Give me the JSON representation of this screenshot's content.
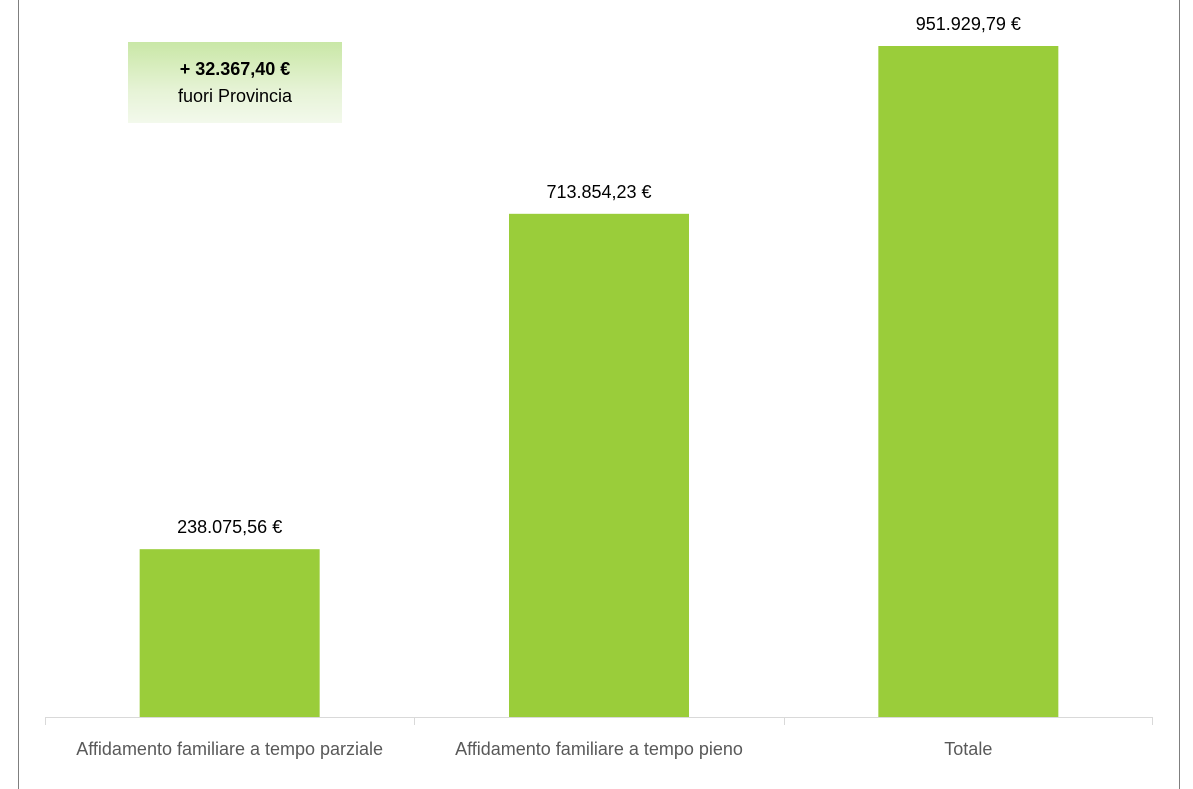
{
  "chart_data": {
    "type": "bar",
    "categories": [
      "Affidamento familiare a tempo parziale",
      "Affidamento familiare a tempo pieno",
      "Totale"
    ],
    "values": [
      238075.56,
      713854.23,
      951929.79
    ],
    "value_labels": [
      "238.075,56 €",
      "713.854,23 €",
      "951.929,79 €"
    ],
    "color": "#9acd3a",
    "annotation": {
      "amount": "+ 32.367,40 €",
      "text": "fuori Provincia"
    }
  }
}
